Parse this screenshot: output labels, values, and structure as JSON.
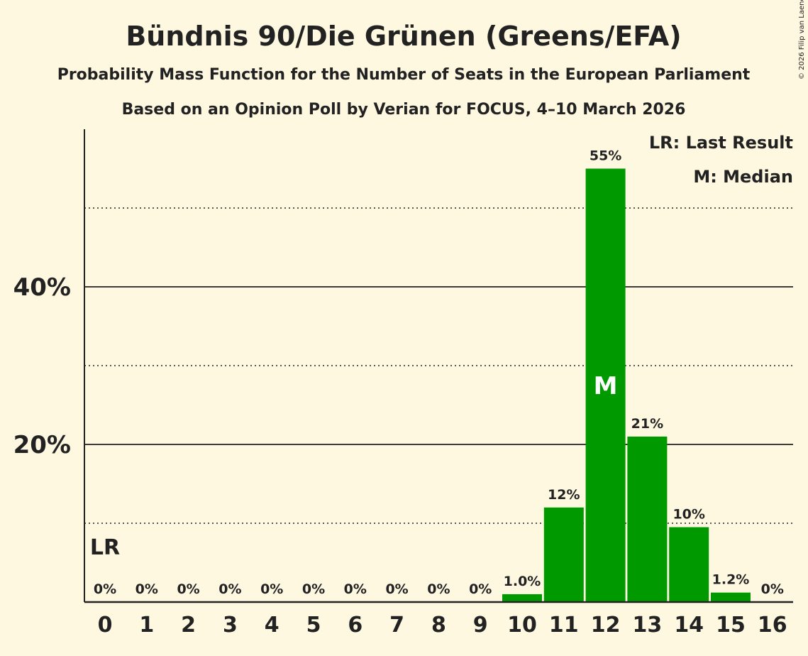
{
  "chart_data": {
    "type": "bar",
    "title": "Bündnis 90/Die Grünen (Greens/EFA)",
    "subtitle": "Probability Mass Function for the Number of Seats in the European Parliament",
    "subtitle2": "Based on an Opinion Poll by Verian for FOCUS, 4–10 March 2026",
    "copyright": "© 2026 Filip van Laenen",
    "categories": [
      "0",
      "1",
      "2",
      "3",
      "4",
      "5",
      "6",
      "7",
      "8",
      "9",
      "10",
      "11",
      "12",
      "13",
      "14",
      "15",
      "16"
    ],
    "values": [
      0,
      0,
      0,
      0,
      0,
      0,
      0,
      0,
      0,
      0,
      1.0,
      12,
      55,
      21,
      9.5,
      1.2,
      0
    ],
    "labels": [
      "0%",
      "0%",
      "0%",
      "0%",
      "0%",
      "0%",
      "0%",
      "0%",
      "0%",
      "0%",
      "1.0%",
      "12%",
      "55%",
      "21%",
      "10%",
      "1.2%",
      "0%"
    ],
    "ylim": [
      0,
      60
    ],
    "yticks": [
      {
        "value": 20,
        "label": "20%"
      },
      {
        "value": 40,
        "label": "40%"
      }
    ],
    "minor_gridlines": [
      10,
      30,
      50
    ],
    "last_result_index": 0,
    "last_result_label": "LR",
    "median_index": 12,
    "median_label": "M",
    "legend": [
      "LR: Last Result",
      "M: Median"
    ],
    "legend_position": "top-right",
    "bar_color": "#009900",
    "background": "#fff8e1"
  }
}
